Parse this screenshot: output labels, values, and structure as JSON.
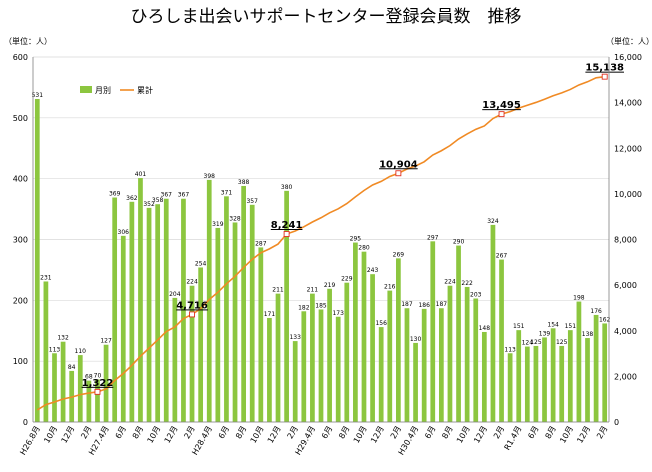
{
  "chart_data": {
    "type": "bar+line",
    "title": "ひろしま出会いサポートセンター登録会員数　推移",
    "y_left_unit": "（単位：人）",
    "y_right_unit": "（単位：人）",
    "ylim_left": [
      0,
      600
    ],
    "ylim_right": [
      0,
      16000
    ],
    "yticks_left": [
      "0",
      "100",
      "200",
      "300",
      "400",
      "500",
      "600"
    ],
    "yticks_right": [
      "0",
      "2,000",
      "4,000",
      "6,000",
      "8,000",
      "10,000",
      "12,000",
      "14,000",
      "16,000"
    ],
    "legend": [
      "月別",
      "累計"
    ],
    "monthly": [
      531,
      231,
      113,
      132,
      84,
      110,
      68,
      70,
      127,
      369,
      306,
      362,
      401,
      352,
      358,
      367,
      204,
      367,
      224,
      254,
      398,
      319,
      371,
      328,
      388,
      357,
      287,
      171,
      211,
      380,
      133,
      182,
      211,
      185,
      219,
      173,
      229,
      295,
      280,
      243,
      156,
      216,
      269,
      187,
      130,
      186,
      297,
      187,
      224,
      290,
      222,
      203,
      148,
      324,
      267,
      113,
      151,
      124,
      125,
      139,
      154,
      125,
      151,
      198,
      138,
      176,
      162
    ],
    "cumulative": [
      531,
      762,
      875,
      1007,
      1091,
      1201,
      1269,
      1322,
      1449,
      1818,
      2124,
      2486,
      2887,
      3239,
      3597,
      3964,
      4168,
      4535,
      4716,
      4970,
      5368,
      5687,
      6058,
      6386,
      6774,
      7131,
      7418,
      7589,
      7800,
      8241,
      8374,
      8556,
      8767,
      8952,
      9171,
      9344,
      9573,
      9868,
      10148,
      10391,
      10547,
      10763,
      10904,
      11091,
      11221,
      11407,
      11704,
      11891,
      12115,
      12405,
      12627,
      12830,
      12978,
      13302,
      13495,
      13608,
      13759,
      13883,
      14008,
      14147,
      14301,
      14426,
      14577,
      14775,
      14913,
      15089,
      15138
    ],
    "cumulative_labels": [
      {
        "index": 7,
        "text": "1,322"
      },
      {
        "index": 18,
        "text": "4,716"
      },
      {
        "index": 29,
        "text": "8,241"
      },
      {
        "index": 42,
        "text": "10,904"
      },
      {
        "index": 54,
        "text": "13,495"
      },
      {
        "index": 66,
        "text": "15,138"
      }
    ],
    "x_labels": [
      {
        "index": 0,
        "text": "H26.8月"
      },
      {
        "index": 2,
        "text": "10月"
      },
      {
        "index": 4,
        "text": "12月"
      },
      {
        "index": 6,
        "text": "2月"
      },
      {
        "index": 8,
        "text": "H27.4月"
      },
      {
        "index": 10,
        "text": "6月"
      },
      {
        "index": 12,
        "text": "8月"
      },
      {
        "index": 14,
        "text": "10月"
      },
      {
        "index": 16,
        "text": "12月"
      },
      {
        "index": 18,
        "text": "2月"
      },
      {
        "index": 20,
        "text": "H28.4月"
      },
      {
        "index": 22,
        "text": "6月"
      },
      {
        "index": 24,
        "text": "8月"
      },
      {
        "index": 26,
        "text": "10月"
      },
      {
        "index": 28,
        "text": "12月"
      },
      {
        "index": 30,
        "text": "2月"
      },
      {
        "index": 32,
        "text": "H29.4月"
      },
      {
        "index": 34,
        "text": "6月"
      },
      {
        "index": 36,
        "text": "8月"
      },
      {
        "index": 38,
        "text": "10月"
      },
      {
        "index": 40,
        "text": "12月"
      },
      {
        "index": 42,
        "text": "2月"
      },
      {
        "index": 44,
        "text": "H30.4月"
      },
      {
        "index": 46,
        "text": "6月"
      },
      {
        "index": 48,
        "text": "8月"
      },
      {
        "index": 50,
        "text": "10月"
      },
      {
        "index": 52,
        "text": "12月"
      },
      {
        "index": 54,
        "text": "2月"
      },
      {
        "index": 56,
        "text": "R1.4月"
      },
      {
        "index": 58,
        "text": "6月"
      },
      {
        "index": 60,
        "text": "8月"
      },
      {
        "index": 62,
        "text": "10月"
      },
      {
        "index": 64,
        "text": "12月"
      },
      {
        "index": 66,
        "text": "2月"
      }
    ],
    "colors": {
      "bar": "#8cc63f",
      "line": "#f08a24",
      "marker": "#e03020",
      "grid": "#d9d9d9",
      "axis": "#808080"
    }
  }
}
